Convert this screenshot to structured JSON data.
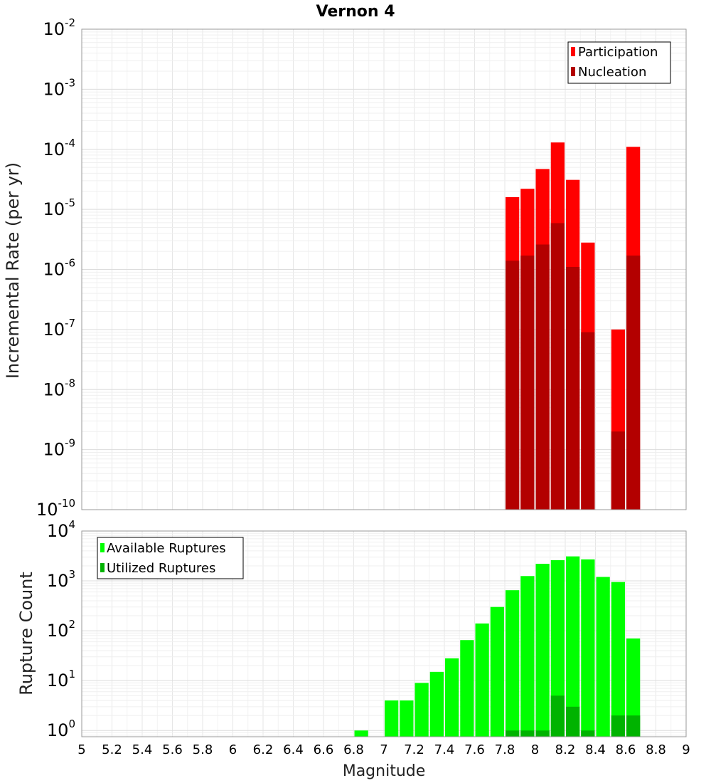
{
  "chart_data": [
    {
      "type": "bar",
      "title": "Vernon 4",
      "xlabel": "",
      "ylabel": "Incremental Rate (per yr)",
      "yscale": "log",
      "ylim": [
        1e-10,
        0.01
      ],
      "xlim": [
        5,
        9
      ],
      "y_tick_exponents": [
        "-10",
        "-9",
        "-8",
        "-7",
        "-6",
        "-5",
        "-4",
        "-3",
        "-2"
      ],
      "y_tick_base": "10",
      "legend": {
        "placement": "top-right",
        "entries": [
          "Participation",
          "Nucleation"
        ]
      },
      "colors": {
        "Participation": "#ff0000",
        "Nucleation": "#b30000"
      },
      "x": [
        7.85,
        7.95,
        8.05,
        8.15,
        8.25,
        8.35,
        8.55,
        8.65
      ],
      "series": [
        {
          "name": "Participation",
          "values": [
            1.6e-05,
            2.2e-05,
            4.7e-05,
            0.00013,
            3.1e-05,
            2.8e-06,
            1e-07,
            0.00011
          ]
        },
        {
          "name": "Nucleation",
          "values": [
            1.4e-06,
            1.7e-06,
            2.6e-06,
            5.9e-06,
            1.1e-06,
            9e-08,
            2e-09,
            1.7e-06
          ]
        }
      ]
    },
    {
      "type": "bar",
      "title": "",
      "xlabel": "Magnitude",
      "ylabel": "Rupture Count",
      "yscale": "log",
      "ylim": [
        0.75,
        10000
      ],
      "xlim": [
        5,
        9
      ],
      "x_ticks": [
        "5",
        "5.2",
        "5.4",
        "5.6",
        "5.8",
        "6",
        "6.2",
        "6.4",
        "6.6",
        "6.8",
        "7",
        "7.2",
        "7.4",
        "7.6",
        "7.8",
        "8",
        "8.2",
        "8.4",
        "8.6",
        "8.8",
        "9"
      ],
      "y_tick_exponents": [
        "0",
        "1",
        "2",
        "3",
        "4"
      ],
      "y_tick_base": "10",
      "legend": {
        "placement": "top-left",
        "entries": [
          "Available Ruptures",
          "Utilized Ruptures"
        ]
      },
      "colors": {
        "Available Ruptures": "#00ff00",
        "Utilized Ruptures": "#00b300"
      },
      "x": [
        6.85,
        7.05,
        7.15,
        7.25,
        7.35,
        7.45,
        7.55,
        7.65,
        7.75,
        7.85,
        7.95,
        8.05,
        8.15,
        8.25,
        8.35,
        8.45,
        8.55,
        8.65
      ],
      "series": [
        {
          "name": "Available Ruptures",
          "values": [
            1,
            4,
            4,
            9,
            15,
            28,
            65,
            140,
            300,
            650,
            1250,
            2200,
            2600,
            3100,
            2700,
            1200,
            950,
            70
          ]
        },
        {
          "name": "Utilized Ruptures",
          "values": [
            null,
            null,
            null,
            null,
            null,
            null,
            null,
            null,
            null,
            1,
            1,
            1,
            5,
            3,
            1,
            null,
            2,
            2
          ]
        }
      ]
    }
  ]
}
